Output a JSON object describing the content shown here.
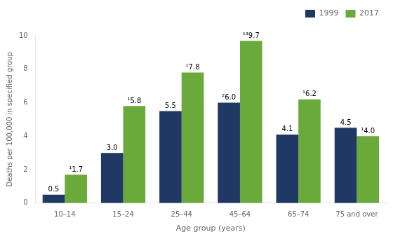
{
  "chart_data": {
    "type": "bar",
    "categories": [
      "10–14",
      "15–24",
      "25–44",
      "45–64",
      "65–74",
      "75 and over"
    ],
    "series": [
      {
        "name": "1999",
        "color": "#1f3864",
        "values": [
          0.5,
          3.0,
          5.5,
          6.0,
          4.1,
          4.5
        ],
        "value_labels": [
          "0.5",
          "3.0",
          "5.5",
          "²6.0",
          "4.1",
          "4.5"
        ]
      },
      {
        "name": "2017",
        "color": "#6aaa3a",
        "values": [
          1.7,
          5.8,
          7.8,
          9.7,
          6.2,
          4.0
        ],
        "value_labels": [
          "¹1.7",
          "¹5.8",
          "¹7.8",
          "¹³9.7",
          "¹6.2",
          "¹4.0"
        ]
      }
    ],
    "xlabel": "Age group (years)",
    "ylabel": "Deaths per 100,000 in specified group",
    "ylim": [
      0,
      10
    ],
    "yticks": [
      0,
      2,
      4,
      6,
      8,
      10
    ],
    "grid": false,
    "legend": "upper right",
    "data_labels": true
  }
}
